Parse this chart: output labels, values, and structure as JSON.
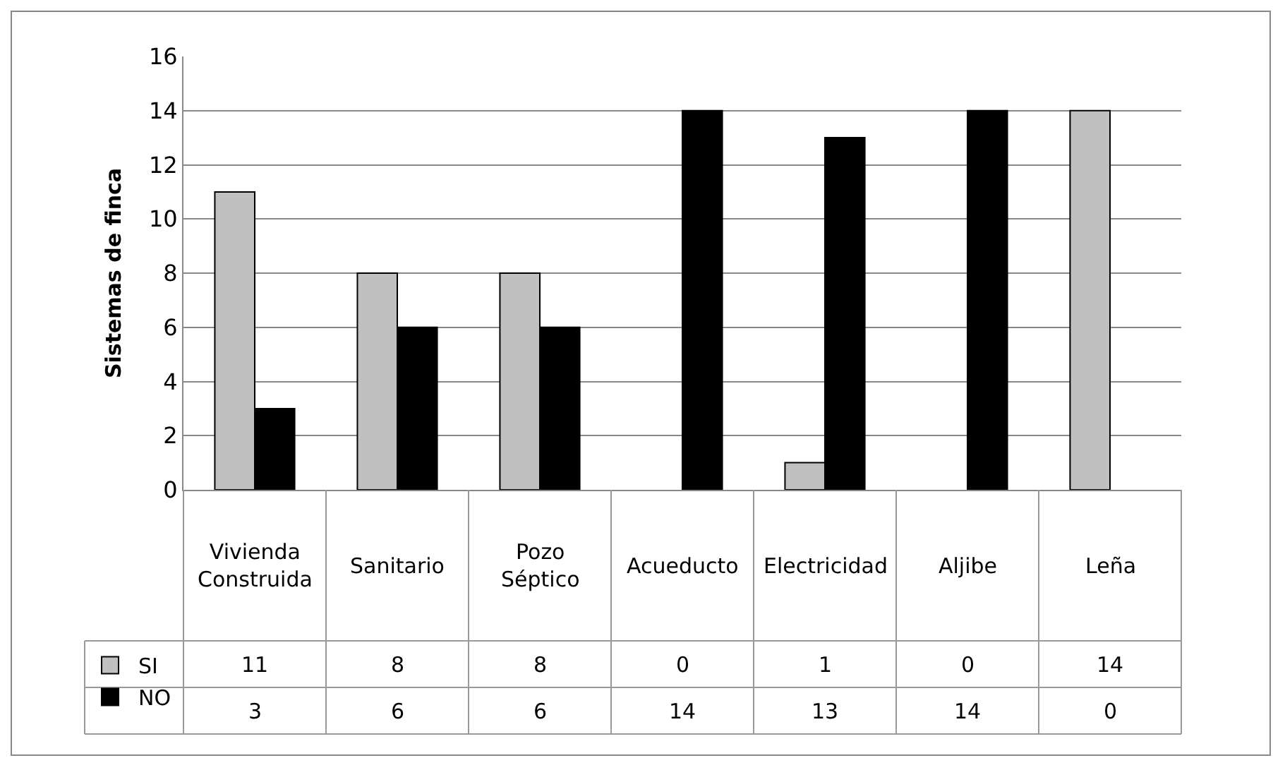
{
  "chart_data": {
    "type": "bar",
    "ylabel": "Sistemas de finca",
    "categories": [
      "Vivienda Construida",
      "Sanitario",
      "Pozo Séptico",
      "Acueducto",
      "Electricidad",
      "Aljibe",
      "Leña"
    ],
    "series": [
      {
        "name": "SI",
        "color": "#c0c0c0",
        "values": [
          11,
          8,
          8,
          0,
          1,
          0,
          14
        ]
      },
      {
        "name": "NO",
        "color": "#000000",
        "values": [
          3,
          6,
          6,
          14,
          13,
          14,
          0
        ]
      }
    ],
    "ylim": [
      0,
      16
    ],
    "yticks": [
      0,
      2,
      4,
      6,
      8,
      10,
      12,
      14,
      16
    ],
    "grid": "y",
    "data_labels": true,
    "legend": "bottom left"
  }
}
